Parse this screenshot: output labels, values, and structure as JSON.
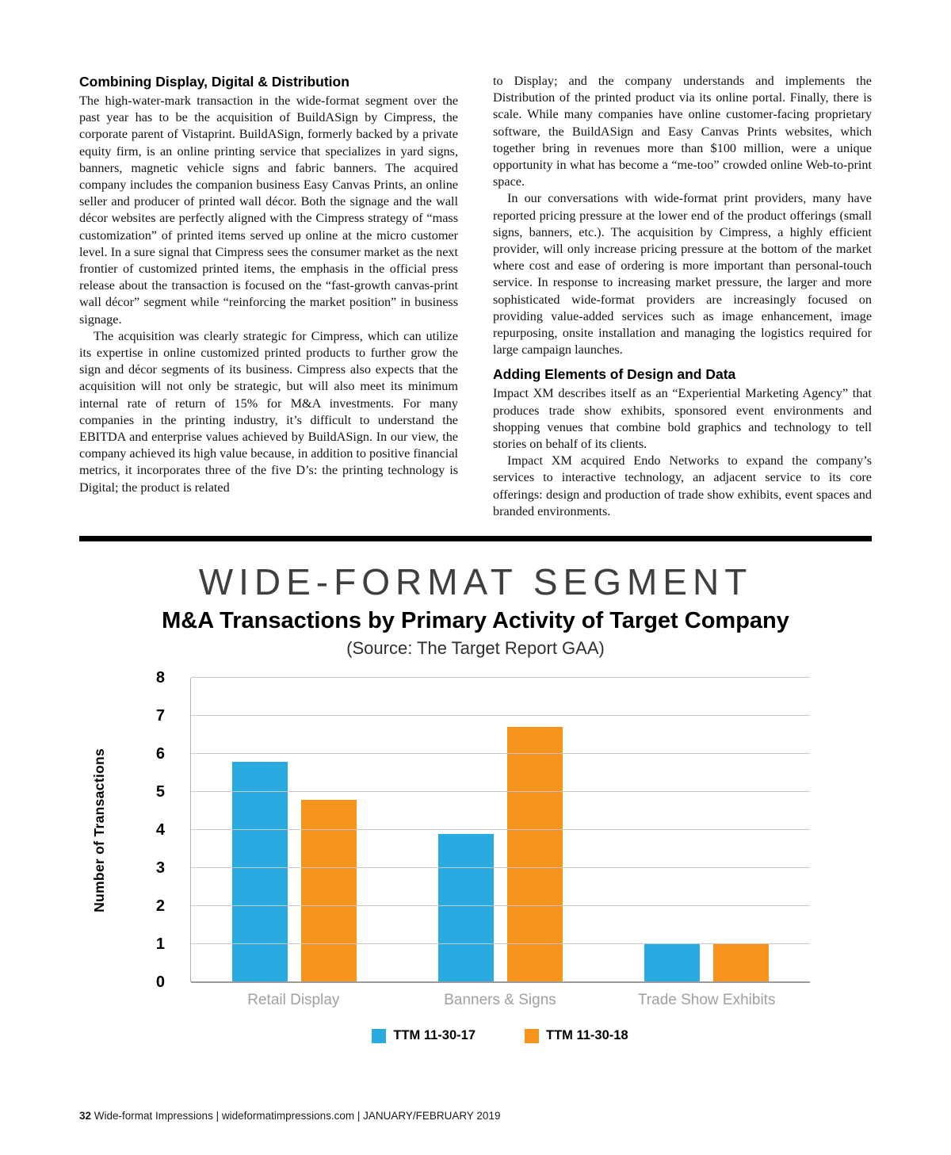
{
  "article": {
    "left": {
      "heading": "Combining Display, Digital & Distribution",
      "paragraphs": [
        "The high-water-mark transaction in the wide-format segment over the past year has to be the acquisition of BuildASign by Cimpress, the corporate parent of Vistaprint. BuildASign, formerly backed by a private equity firm, is an online printing service that specializes in yard signs, banners, magnetic vehicle signs and fabric banners. The acquired company includes the companion business Easy Canvas Prints, an online seller and producer of printed wall décor. Both the signage and the wall décor websites are perfectly aligned with the Cimpress strategy of “mass customization” of printed items served up online at the micro customer level. In a sure signal that Cimpress sees the consumer market as the next frontier of customized printed items, the emphasis in the official press release about the transaction is focused on the “fast-growth canvas-print wall décor” segment while “reinforcing the market position” in business signage.",
        "The acquisition was clearly strategic for Cimpress, which can utilize its expertise in online customized printed products to further grow the sign and décor segments of its business. Cimpress also expects that the acquisition will not only be strategic, but will also meet its minimum internal rate of return of 15% for M&A investments. For many companies in the printing industry, it’s difficult to understand the EBITDA and enterprise values achieved by BuildASign. In our view, the company achieved its high value because, in addition to positive financial metrics, it incorporates three of the five D’s: the printing technology is Digital; the product is related"
      ]
    },
    "right": {
      "paragraphs_before": [
        "to Display; and the company understands and implements the Distribution of the printed product via its online portal. Finally, there is scale. While many companies have online customer-facing proprietary software, the BuildASign and Easy Canvas Prints websites, which together bring in revenues more than $100 million, were a unique opportunity in what has become a “me-too” crowded online Web-to-print space.",
        "In our conversations with wide-format print providers, many have reported pricing pressure at the lower end of the product offerings (small signs, banners, etc.). The acquisition by Cimpress, a highly efficient provider, will only increase pricing pressure at the bottom of the market where cost and ease of ordering is more important than personal-touch service. In response to increasing market pressure, the larger and more sophisticated wide-format providers are increasingly focused on providing value-added services such as image enhancement, image repurposing, onsite installation and managing the logistics required for large campaign launches."
      ],
      "heading": "Adding Elements of Design and Data",
      "paragraphs_after": [
        "Impact XM describes itself as an “Experiential Marketing Agency” that produces trade show exhibits, sponsored event environments and shopping venues that combine bold graphics and technology to tell stories on behalf of its clients.",
        "Impact XM acquired Endo Networks to expand the company’s services to interactive technology, an adjacent service to its core offerings: design and production of trade show exhibits, event spaces and branded environments."
      ]
    }
  },
  "chart_data": {
    "type": "bar",
    "title": "WIDE-FORMAT SEGMENT",
    "subtitle": "M&A Transactions by Primary Activity of Target Company",
    "source": "(Source: The Target Report GAA)",
    "ylabel": "Number of Transactions",
    "categories": [
      "Retail Display",
      "Banners & Signs",
      "Trade Show Exhibits"
    ],
    "series": [
      {
        "name": "TTM 11-30-17",
        "color": "#29abe2",
        "values": [
          5.8,
          3.9,
          1
        ]
      },
      {
        "name": "TTM 11-30-18",
        "color": "#f7941e",
        "values": [
          4.8,
          6.7,
          1
        ]
      }
    ],
    "ylim": [
      0,
      8
    ],
    "yticks": [
      0,
      1,
      2,
      3,
      4,
      5,
      6,
      7,
      8
    ],
    "grid": true,
    "legend_position": "bottom"
  },
  "footer": {
    "page_number": "32",
    "text": " Wide-format Impressions | wideformatimpressions.com | JANUARY/FEBRUARY 2019"
  }
}
